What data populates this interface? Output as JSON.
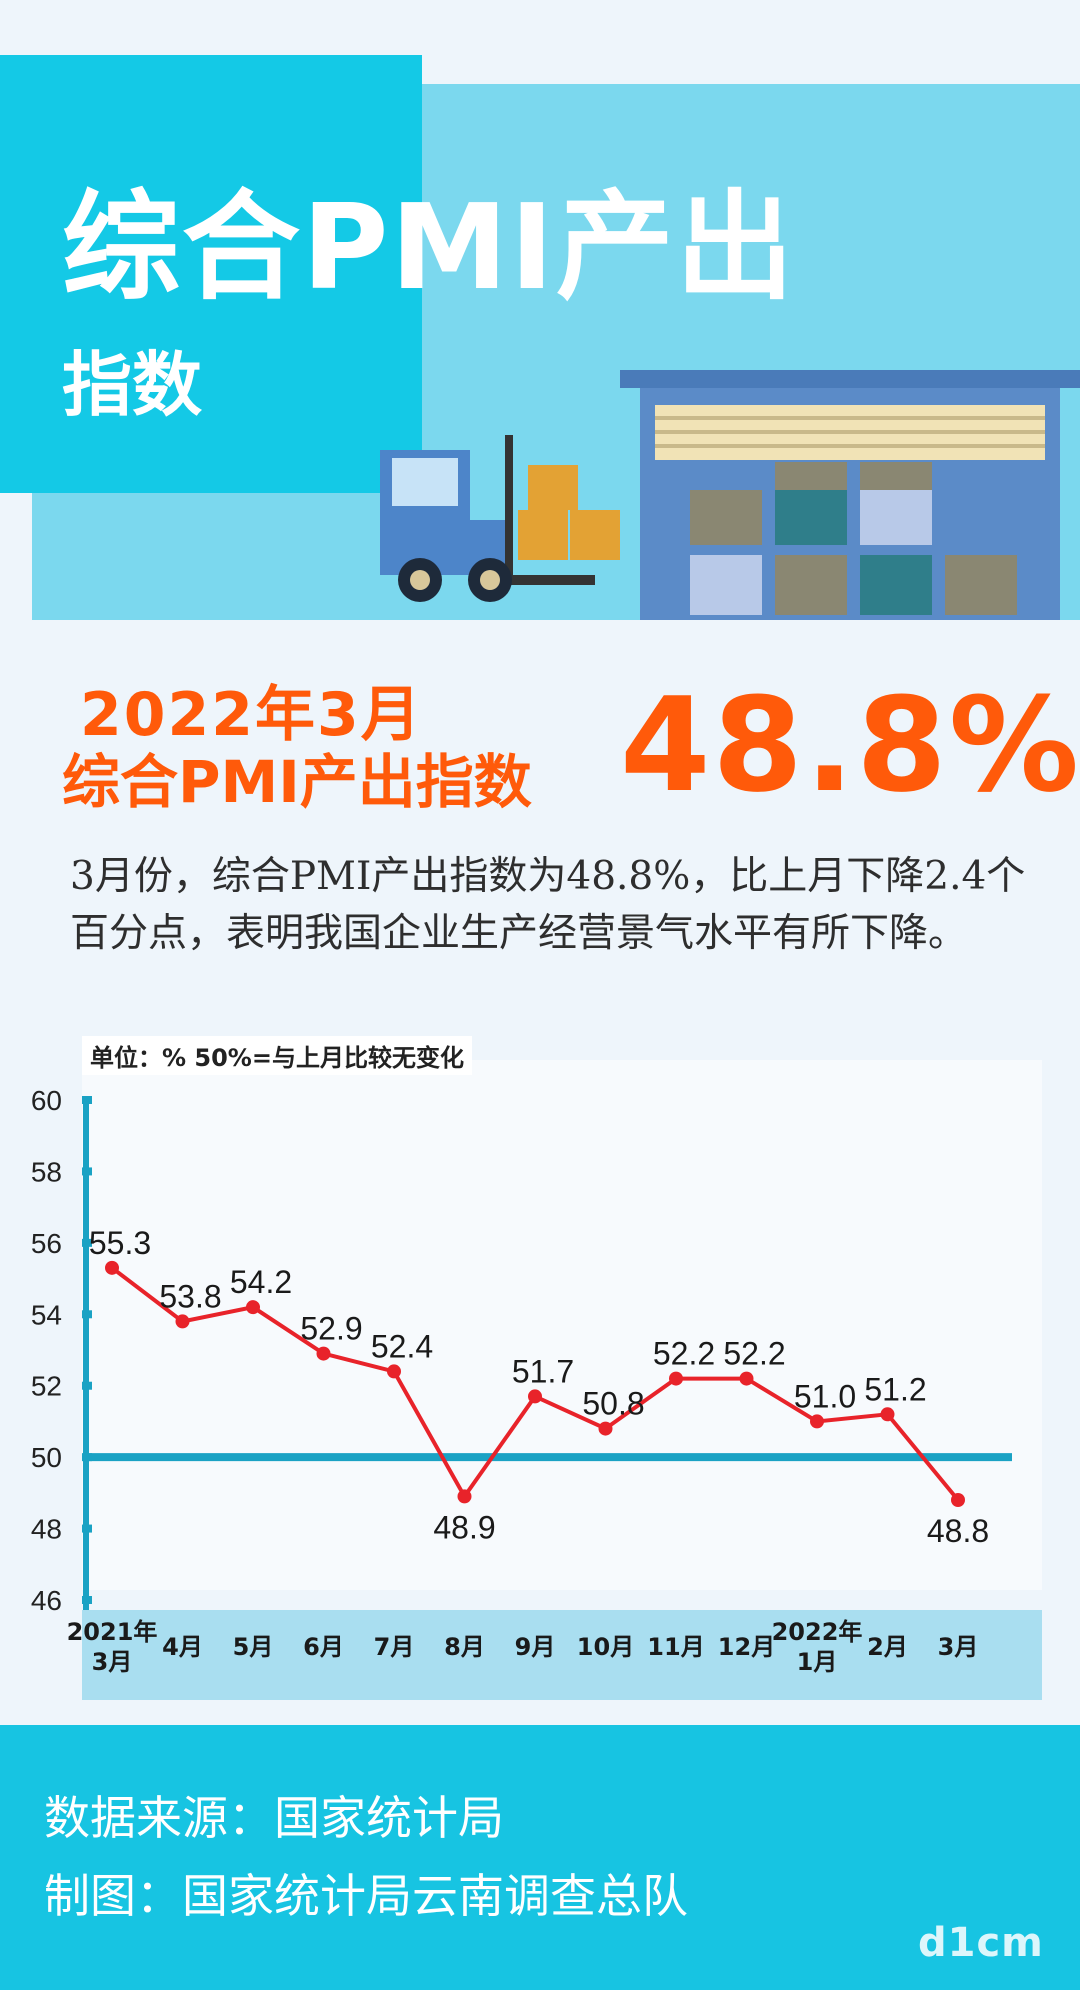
{
  "header": {
    "title": "综合PMI产出",
    "subtitle": "指数"
  },
  "headline": {
    "line1": "2022年3月",
    "line2": "综合PMI产出指数",
    "value": "48.8%"
  },
  "description": "3月份，综合PMI产出指数为48.8%，比上月下降2.4个百分点，表明我国企业生产经营景气水平有所下降。",
  "chart_unit_note": "单位：%  50%=与上月比较无变化",
  "chart_data": {
    "type": "line",
    "categories": [
      "2021年\n3月",
      "4月",
      "5月",
      "6月",
      "7月",
      "8月",
      "9月",
      "10月",
      "11月",
      "12月",
      "2022年\n1月",
      "2月",
      "3月"
    ],
    "values": [
      55.3,
      53.8,
      54.2,
      52.9,
      52.4,
      48.9,
      51.7,
      50.8,
      52.2,
      52.2,
      51.0,
      51.2,
      48.8
    ],
    "value_labels": [
      "55.3",
      "53.8",
      "54.2",
      "52.9",
      "52.4",
      "48.9",
      "51.7",
      "50.8",
      "52.2",
      "52.2",
      "51.0",
      "51.2",
      "48.8"
    ],
    "yticks": [
      "60",
      "58",
      "56",
      "54",
      "52",
      "50",
      "48",
      "46"
    ],
    "ylim": [
      46,
      60
    ],
    "reference_line": 50,
    "colors": {
      "line": "#e8232a",
      "reference": "#1aa2c4",
      "axis_band": "#a9def0"
    }
  },
  "footer": {
    "source": "数据来源：国家统计局",
    "maker": "制图：国家统计局云南调查总队"
  },
  "watermark": "d1cm"
}
